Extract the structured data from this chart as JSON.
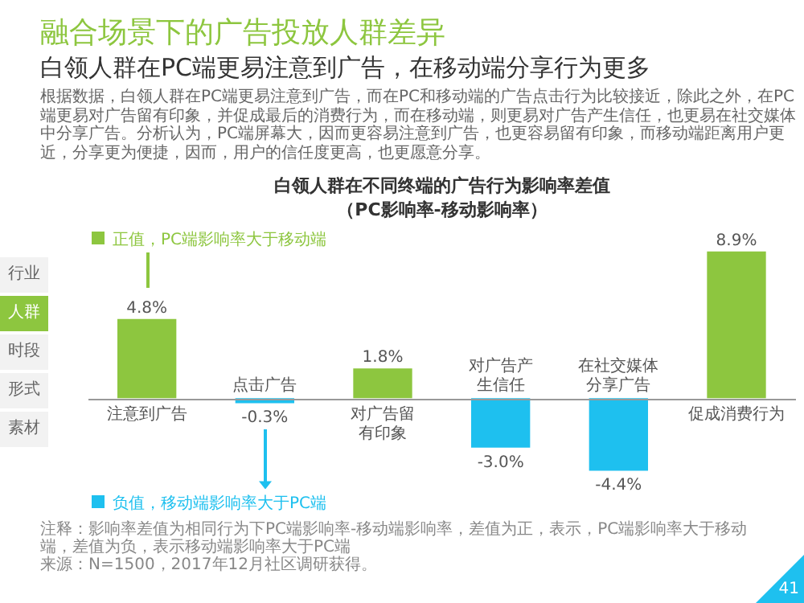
{
  "chart_data": {
    "type": "bar",
    "title": "白领人群在不同终端的广告行为影响率差值",
    "subtitle": "（PC影响率-移动影响率）",
    "categories": [
      "注意到广告",
      "点击广告",
      "对广告留有印象",
      "对广告产生信任",
      "在社交媒体分享广告",
      "促成消费行为"
    ],
    "values": [
      4.8,
      -0.3,
      1.8,
      -3.0,
      -4.4,
      8.9
    ],
    "colors": [
      "#8dc63f",
      "#1ec0ef",
      "#8dc63f",
      "#1ec0ef",
      "#1ec0ef",
      "#8dc63f"
    ],
    "value_labels": [
      "4.8%",
      "-0.3%",
      "1.8%",
      "-3.0%",
      "-4.4%",
      "8.9%"
    ],
    "annotations": [
      "融合场景下的广告投放人群差异",
      "白领人群在PC端更易注意到广告，在移动端分享行为更多",
      "根据数据，白领人群在PC端更易注意到广告，而在PC和移动端的广告点击行为比较接近，除此之外，在PC端更易对广告留有印象，并促成最后的消费行为，而在移动端，则更易对广告产生信任，也更易在社交媒体中分享广告。分析认为，PC端屏幕大，因而更容易注意到广告，也更容易留有印象，而移动端距离用户更近，分享更为便捷，因而，用户的信任度更高，也更愿意分享。",
      "行业",
      "人群",
      "时段",
      "形式",
      "素材",
      "正值，PC端影响率大于移动端",
      "负值，移动端影响率大于PC端",
      "注释：影响率差值为相同行为下PC端影响率-移动端影响率，差值为正，表示，PC端影响率大于移动端，差值为负，表示移动端影响率大于PC端",
      "来源：N=1500，2017年12月社区调研获得。",
      "41"
    ]
  }
}
